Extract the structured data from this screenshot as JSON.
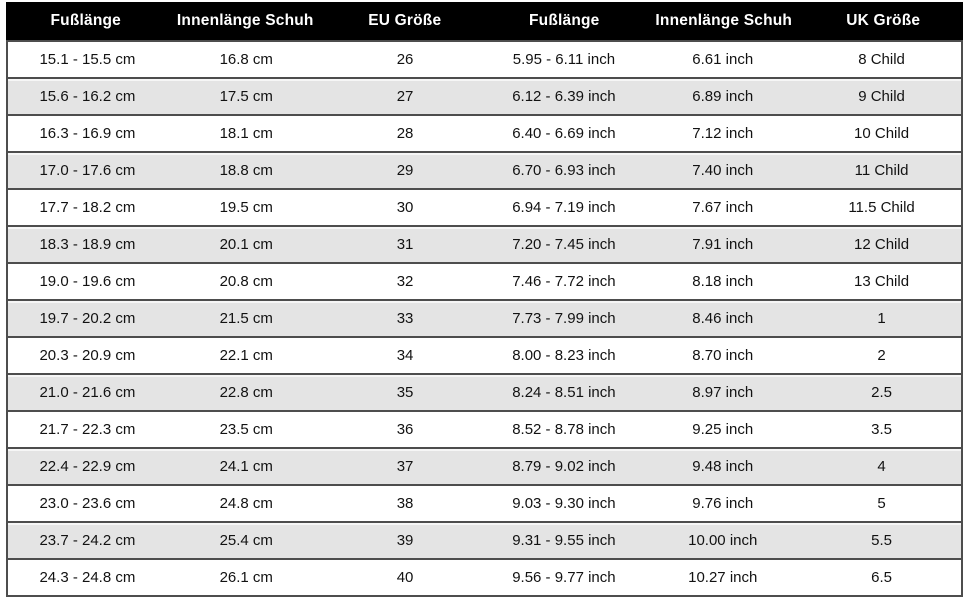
{
  "table": {
    "headers": [
      "Fußlänge",
      "Innenlänge Schuh",
      "EU Größe",
      "Fußlänge",
      "Innenlänge Schuh",
      "UK Größe"
    ],
    "rows": [
      [
        "15.1 - 15.5 cm",
        "16.8 cm",
        "26",
        "5.95 - 6.11 inch",
        "6.61 inch",
        "8 Child"
      ],
      [
        "15.6 - 16.2 cm",
        "17.5 cm",
        "27",
        "6.12 - 6.39 inch",
        "6.89 inch",
        "9 Child"
      ],
      [
        "16.3 - 16.9 cm",
        "18.1 cm",
        "28",
        "6.40 - 6.69 inch",
        "7.12 inch",
        "10 Child"
      ],
      [
        "17.0 - 17.6 cm",
        "18.8 cm",
        "29",
        "6.70 - 6.93 inch",
        "7.40 inch",
        "11 Child"
      ],
      [
        "17.7 - 18.2 cm",
        "19.5 cm",
        "30",
        "6.94 - 7.19 inch",
        "7.67 inch",
        "11.5 Child"
      ],
      [
        "18.3 - 18.9 cm",
        "20.1 cm",
        "31",
        "7.20 - 7.45 inch",
        "7.91 inch",
        "12 Child"
      ],
      [
        "19.0 - 19.6 cm",
        "20.8 cm",
        "32",
        "7.46 - 7.72 inch",
        "8.18 inch",
        "13 Child"
      ],
      [
        "19.7 - 20.2 cm",
        "21.5 cm",
        "33",
        "7.73 - 7.99 inch",
        "8.46 inch",
        "1"
      ],
      [
        "20.3 - 20.9 cm",
        "22.1 cm",
        "34",
        "8.00 - 8.23 inch",
        "8.70 inch",
        "2"
      ],
      [
        "21.0 - 21.6 cm",
        "22.8 cm",
        "35",
        "8.24 - 8.51 inch",
        "8.97 inch",
        "2.5"
      ],
      [
        "21.7 - 22.3 cm",
        "23.5 cm",
        "36",
        "8.52 - 8.78 inch",
        "9.25 inch",
        "3.5"
      ],
      [
        "22.4 - 22.9 cm",
        "24.1 cm",
        "37",
        "8.79 - 9.02 inch",
        "9.48 inch",
        "4"
      ],
      [
        "23.0 - 23.6 cm",
        "24.8 cm",
        "38",
        "9.03 - 9.30 inch",
        "9.76 inch",
        "5"
      ],
      [
        "23.7 - 24.2 cm",
        "25.4 cm",
        "39",
        "9.31 - 9.55 inch",
        "10.00 inch",
        "5.5"
      ],
      [
        "24.3 - 24.8 cm",
        "26.1 cm",
        "40",
        "9.56 - 9.77 inch",
        "10.27 inch",
        "6.5"
      ]
    ]
  },
  "colors": {
    "header_bg": "#000000",
    "header_text": "#ffffff",
    "row_white": "#ffffff",
    "row_gray": "#e4e4e4",
    "border": "#4d4d4d",
    "text": "#121212"
  }
}
